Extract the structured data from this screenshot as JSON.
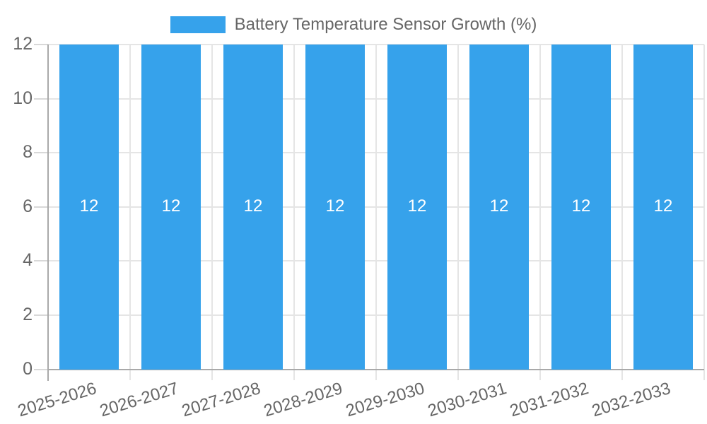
{
  "legend": {
    "label": "Battery Temperature Sensor Growth (%)"
  },
  "colors": {
    "bar": "#36A2EB",
    "grid_line": "#e5e5e5",
    "axis_line": "#a9a9a9",
    "tick_mark": "#d8d8d8",
    "tick_text": "#666666",
    "bar_label_text": "#ffffff",
    "background": "#ffffff"
  },
  "chart_data": {
    "type": "bar",
    "title": "Battery Temperature Sensor Growth (%)",
    "categories": [
      "2025-2026",
      "2026-2027",
      "2027-2028",
      "2028-2029",
      "2029-2030",
      "2030-2031",
      "2031-2032",
      "2032-2033"
    ],
    "series": [
      {
        "name": "Battery Temperature Sensor Growth (%)",
        "values": [
          12,
          12,
          12,
          12,
          12,
          12,
          12,
          12
        ]
      }
    ],
    "bar_value_labels": [
      "12",
      "12",
      "12",
      "12",
      "12",
      "12",
      "12",
      "12"
    ],
    "xlabel": "",
    "ylabel": "",
    "ylim": [
      0,
      12
    ],
    "yticks": [
      0,
      2,
      4,
      6,
      8,
      10,
      12
    ],
    "grid": true,
    "legend_position": "top",
    "x_tick_rotation_deg": -17
  }
}
